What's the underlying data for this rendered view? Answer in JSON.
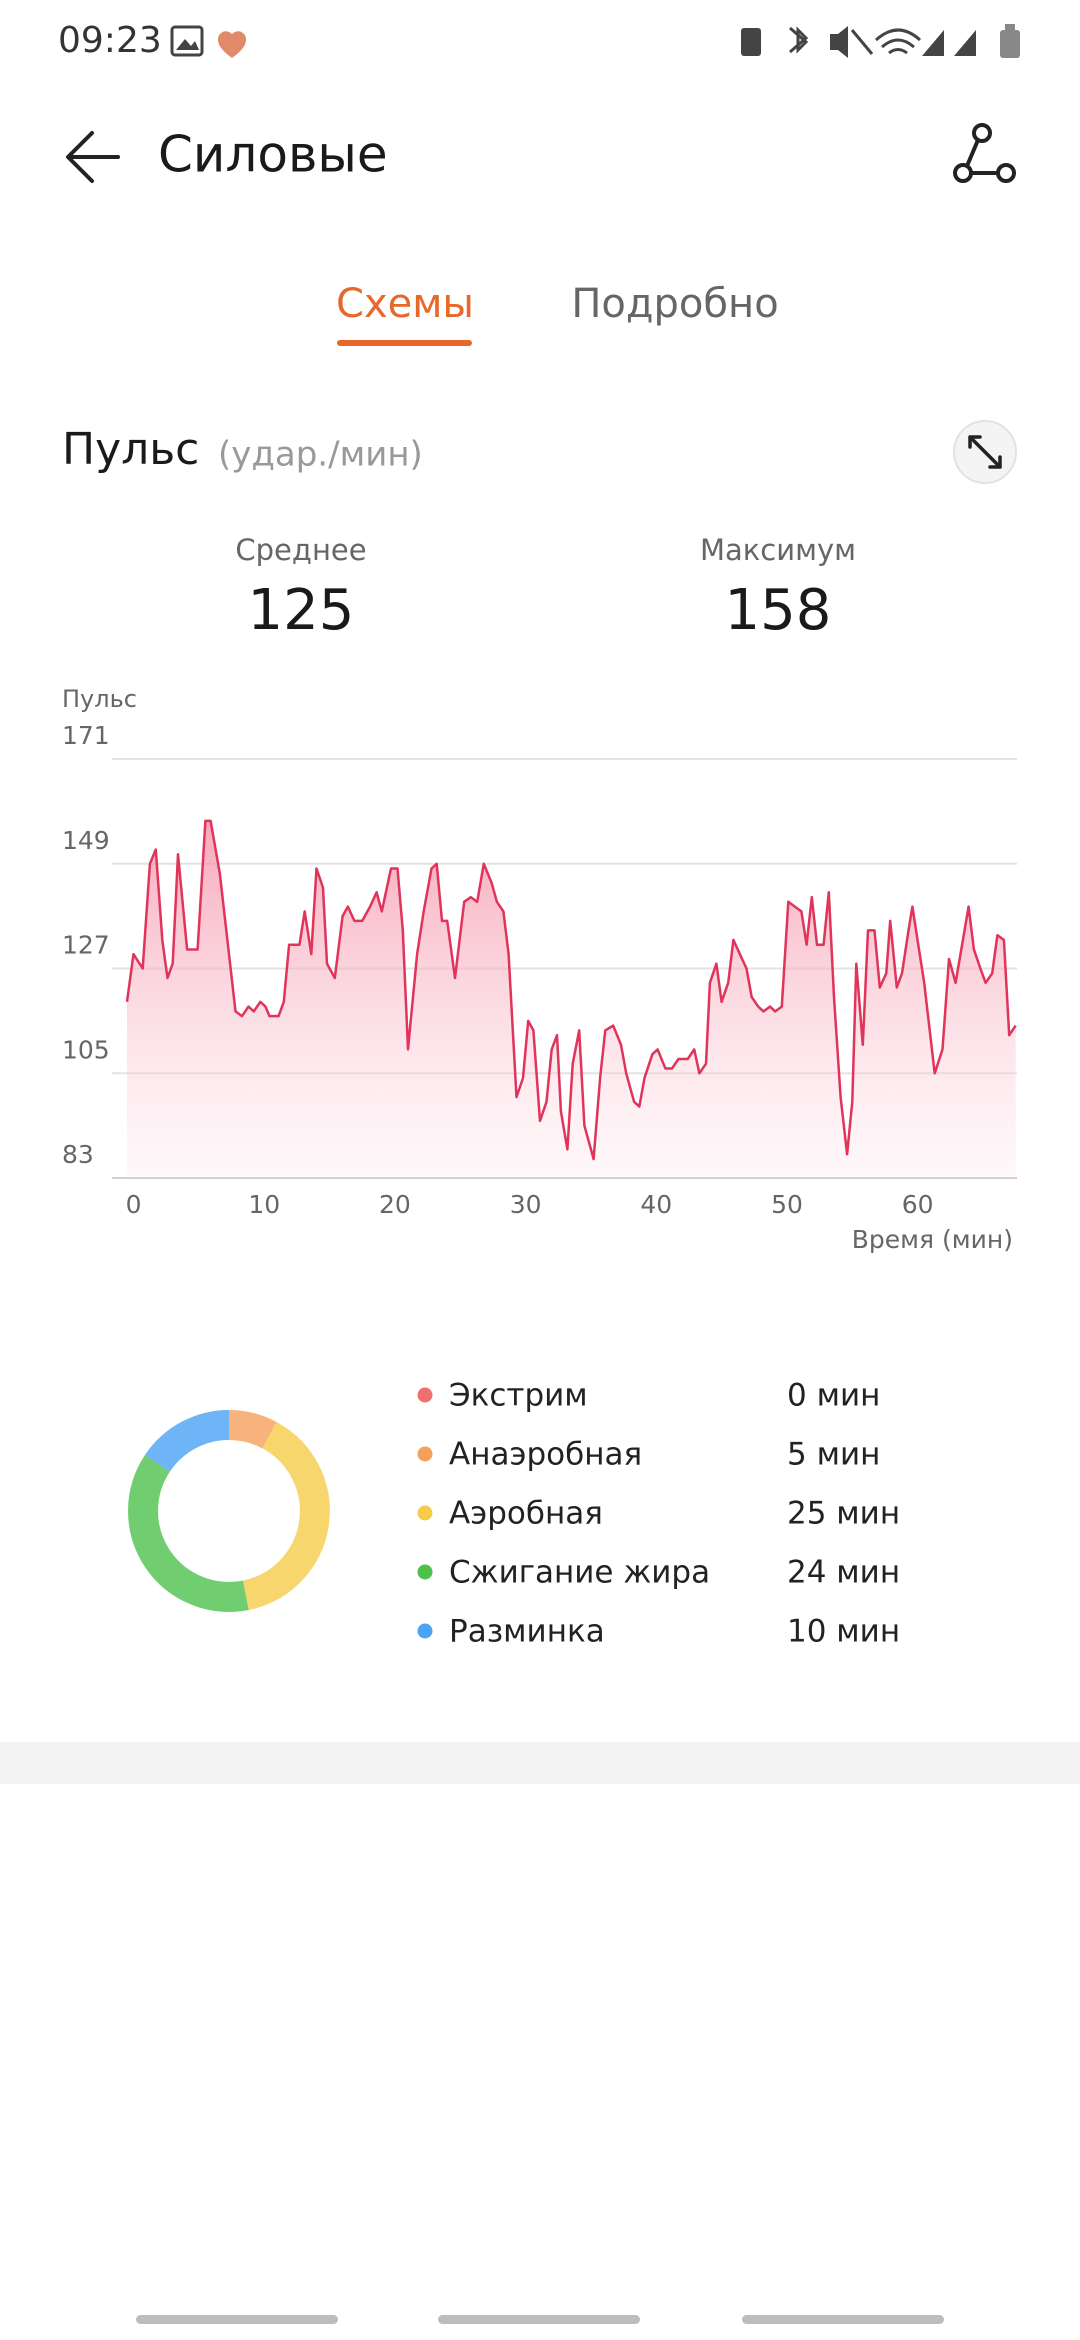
{
  "status_bar": {
    "time": "09:23"
  },
  "header": {
    "title": "Силовые"
  },
  "tabs": [
    "Схемы",
    "Подробно"
  ],
  "section": {
    "title": "Пульс",
    "unit": "(удар./мин)",
    "stats": [
      {
        "label": "Среднее",
        "value": 125
      },
      {
        "label": "Максимум",
        "value": 158
      }
    ]
  },
  "chart_data": [
    {
      "type": "line",
      "y_label": "Пульс",
      "x_label": "Время (мин)",
      "color": "#e0345a",
      "x": [
        -0.5,
        0,
        0.7,
        1.25,
        1.7,
        2.2,
        2.6,
        3,
        3.4,
        4.1,
        4.9,
        5.5,
        5.9,
        6.6,
        7.8,
        8.3,
        8.8,
        9.2,
        9.7,
        10.1,
        10.4,
        11.1,
        11.5,
        11.9,
        12.7,
        13.1,
        13.6,
        14,
        14.5,
        14.8,
        15.4,
        16,
        16.4,
        16.9,
        17.5,
        18.1,
        18.6,
        19,
        19.7,
        20.2,
        20.6,
        21,
        21.7,
        22.2,
        22.8,
        23.2,
        23.6,
        24,
        24.6,
        25.3,
        25.8,
        26.3,
        26.8,
        27.4,
        27.8,
        28.3,
        28.7,
        29.3,
        29.8,
        30.2,
        30.6,
        31.1,
        31.6,
        32,
        32.4,
        32.7,
        33.2,
        33.6,
        34.1,
        34.5,
        35.2,
        35.7,
        36.1,
        36.7,
        37.3,
        37.7,
        38.3,
        38.7,
        39.1,
        39.7,
        40.1,
        40.7,
        41.2,
        41.7,
        42.4,
        42.9,
        43.3,
        43.8,
        44.1,
        44.6,
        45,
        45.5,
        45.9,
        46.4,
        46.9,
        47.3,
        47.8,
        48.2,
        48.7,
        49.1,
        49.6,
        50.1,
        50.6,
        51.1,
        51.5,
        51.9,
        52.3,
        52.8,
        53.2,
        53.6,
        54.1,
        54.6,
        55,
        55.3,
        55.8,
        56.2,
        56.7,
        57.1,
        57.6,
        57.9,
        58.4,
        58.8,
        59.3,
        59.6,
        60.1,
        60.5,
        61.3,
        61.9,
        62.4,
        62.9,
        63.4,
        63.9,
        64.3,
        64.8,
        65.2,
        65.7,
        66.1,
        66.6,
        67,
        67.5
      ],
      "values": [
        120,
        130,
        127,
        149,
        152,
        133,
        125,
        128,
        151,
        131,
        131,
        158,
        158,
        147,
        118,
        117,
        119,
        118,
        120,
        119,
        117,
        117,
        120,
        132,
        132,
        139,
        130,
        148,
        144,
        128,
        125,
        138,
        140,
        137,
        137,
        140,
        143,
        139,
        148,
        148,
        135,
        110,
        130,
        139,
        148,
        149,
        137,
        137,
        125,
        141,
        142,
        141,
        149,
        145,
        141,
        139,
        130,
        100,
        104,
        116,
        114,
        95,
        99,
        110,
        113,
        97,
        89,
        107,
        114,
        94,
        87,
        104,
        114,
        115,
        111,
        105,
        99,
        98,
        104,
        109,
        110,
        106,
        106,
        108,
        108,
        110,
        105,
        107,
        124,
        128,
        120,
        124,
        133,
        130,
        127,
        121,
        119,
        118,
        119,
        118,
        119,
        141,
        140,
        139,
        132,
        142,
        132,
        132,
        143,
        121,
        100,
        88,
        99,
        128,
        111,
        135,
        135,
        123,
        126,
        137,
        123,
        126,
        135,
        140,
        131,
        124,
        105,
        110,
        129,
        124,
        132,
        140,
        131,
        127,
        124,
        126,
        134,
        133,
        113,
        115
      ],
      "xlim": [
        -0.5,
        67.6
      ],
      "ylim": [
        83,
        171
      ],
      "xticks": [
        0,
        10,
        20,
        30,
        40,
        50,
        60
      ],
      "yticks": [
        83,
        105,
        127,
        149,
        171
      ],
      "grid": true
    },
    {
      "type": "pie",
      "donut": true,
      "categories": [
        "Экстрим",
        "Анаэробная",
        "Аэробная",
        "Сжигание жира",
        "Разминка"
      ],
      "values": [
        0,
        5,
        25,
        24,
        10
      ],
      "value_labels": [
        "0 мин",
        "5 мин",
        "25 мин",
        "24 мин",
        "10 мин"
      ],
      "colors": [
        "#f07070",
        "#f5a05a",
        "#f5cc4a",
        "#4cc24c",
        "#4aa3f5"
      ]
    }
  ]
}
